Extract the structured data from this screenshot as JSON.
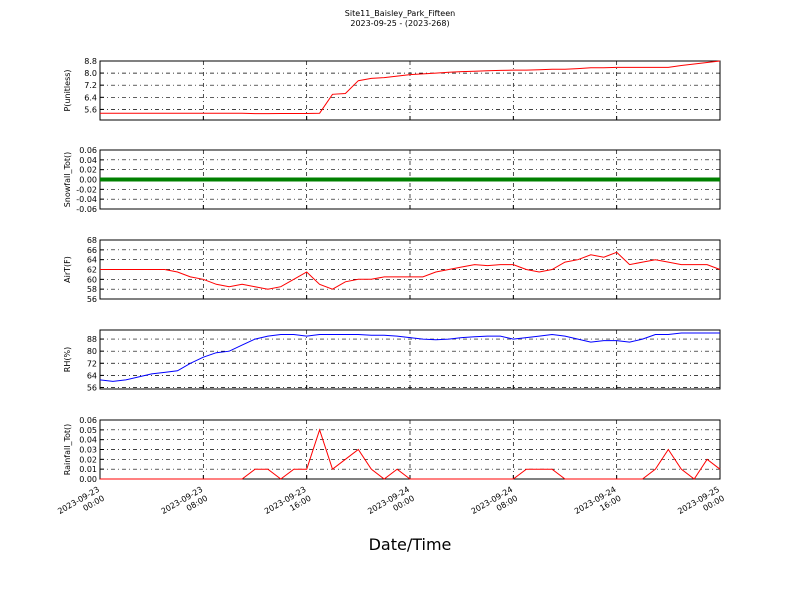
{
  "title": "Site11_Baisley_Park_Fifteen",
  "subtitle": "2023-09-25 - (2023-268)",
  "xlabel": "Date/Time",
  "x": [
    "2023-09-23 00:00",
    "2023-09-23 01:00",
    "2023-09-23 02:00",
    "2023-09-23 03:00",
    "2023-09-23 04:00",
    "2023-09-23 05:00",
    "2023-09-23 06:00",
    "2023-09-23 07:00",
    "2023-09-23 08:00",
    "2023-09-23 09:00",
    "2023-09-23 10:00",
    "2023-09-23 11:00",
    "2023-09-23 12:00",
    "2023-09-23 13:00",
    "2023-09-23 14:00",
    "2023-09-23 15:00",
    "2023-09-23 16:00",
    "2023-09-23 17:00",
    "2023-09-23 18:00",
    "2023-09-23 19:00",
    "2023-09-23 20:00",
    "2023-09-23 21:00",
    "2023-09-23 22:00",
    "2023-09-23 23:00",
    "2023-09-24 00:00",
    "2023-09-24 01:00",
    "2023-09-24 02:00",
    "2023-09-24 03:00",
    "2023-09-24 04:00",
    "2023-09-24 05:00",
    "2023-09-24 06:00",
    "2023-09-24 07:00",
    "2023-09-24 08:00",
    "2023-09-24 09:00",
    "2023-09-24 10:00",
    "2023-09-24 11:00",
    "2023-09-24 12:00",
    "2023-09-24 13:00",
    "2023-09-24 14:00",
    "2023-09-24 15:00",
    "2023-09-24 16:00",
    "2023-09-24 17:00",
    "2023-09-24 18:00",
    "2023-09-24 19:00",
    "2023-09-24 20:00",
    "2023-09-24 21:00",
    "2023-09-24 22:00",
    "2023-09-24 23:00",
    "2023-09-25 00:00"
  ],
  "xlim": [
    "2023-09-23 00:00",
    "2023-09-25 00:00"
  ],
  "xticks": [
    "2023-09-23 00:00",
    "2023-09-23 08:00",
    "2023-09-23 16:00",
    "2023-09-24 00:00",
    "2023-09-24 08:00",
    "2023-09-24 16:00",
    "2023-09-25 00:00"
  ],
  "chart_data": [
    {
      "type": "line",
      "ylabel": "P(unitless)",
      "ylim": [
        4.9,
        8.8
      ],
      "grid": true,
      "yticks": [
        5.6,
        6.4,
        7.2,
        {
          "value": 8,
          "label": "8.0"
        },
        8.8
      ],
      "series": [
        {
          "color": "#ff0000",
          "values": [
            5.35,
            5.35,
            5.35,
            5.35,
            5.35,
            5.35,
            5.35,
            5.35,
            5.34,
            5.34,
            5.34,
            5.34,
            5.32,
            5.32,
            5.33,
            5.33,
            5.33,
            5.35,
            6.6,
            6.65,
            7.5,
            7.65,
            7.7,
            7.8,
            7.9,
            7.95,
            8.0,
            8.05,
            8.1,
            8.12,
            8.15,
            8.18,
            8.2,
            8.2,
            8.22,
            8.25,
            8.25,
            8.3,
            8.35,
            8.35,
            8.38,
            8.38,
            8.38,
            8.38,
            8.38,
            8.5,
            8.6,
            8.7,
            8.8
          ]
        }
      ]
    },
    {
      "type": "line",
      "ylabel": "Snowfall_Tot()",
      "ylim": [
        -0.06,
        0.06
      ],
      "grid": true,
      "yticks": [
        -0.06,
        -0.04,
        -0.02,
        {
          "value": 0,
          "label": "0.00"
        },
        0.02,
        0.04,
        0.06
      ],
      "series": [
        {
          "color": "#008000",
          "values": [
            0,
            0,
            0,
            0,
            0,
            0,
            0,
            0,
            0,
            0,
            0,
            0,
            0,
            0,
            0,
            0,
            0,
            0,
            0,
            0,
            0,
            0,
            0,
            0,
            0,
            0,
            0,
            0,
            0,
            0,
            0,
            0,
            0,
            0,
            0,
            0,
            0,
            0,
            0,
            0,
            0,
            0,
            0,
            0,
            0,
            0,
            0,
            0,
            0
          ]
        }
      ]
    },
    {
      "type": "line",
      "ylabel": "AirT(F)",
      "ylim": [
        56,
        68
      ],
      "grid": true,
      "yticks": [
        56,
        58,
        60,
        62,
        64,
        66,
        68
      ],
      "series": [
        {
          "color": "#ff0000",
          "values": [
            62,
            62,
            62,
            62,
            62,
            62,
            61.5,
            60.5,
            60,
            59,
            58.5,
            59,
            58.5,
            58,
            58.5,
            60,
            61.5,
            59,
            58,
            59.5,
            60,
            60,
            60.5,
            60.5,
            60.5,
            60.5,
            61.5,
            62,
            62.5,
            63,
            62.8,
            63,
            63,
            62,
            61.5,
            62,
            63.5,
            64,
            65,
            64.5,
            65.5,
            63,
            63.5,
            64,
            63.5,
            63,
            63,
            63,
            62
          ]
        }
      ]
    },
    {
      "type": "line",
      "ylabel": "RH(%)",
      "ylim": [
        55,
        94
      ],
      "grid": true,
      "yticks": [
        56,
        64,
        72,
        80,
        88
      ],
      "series": [
        {
          "color": "#0000ff",
          "values": [
            61,
            60,
            61,
            63,
            65,
            66,
            67,
            72,
            76,
            79,
            80,
            84,
            88,
            90,
            91,
            91,
            90,
            91,
            91,
            91,
            91,
            90.5,
            90.5,
            90,
            89,
            88,
            87.5,
            88,
            89,
            89.5,
            90,
            90,
            88,
            89,
            90,
            91,
            90,
            88,
            86,
            87,
            87,
            86,
            88,
            91,
            91,
            92,
            92,
            92,
            92
          ]
        }
      ]
    },
    {
      "type": "line",
      "ylabel": "Rainfall_Tot()",
      "ylim": [
        0,
        0.06
      ],
      "grid": true,
      "yticks": [
        {
          "value": 0,
          "label": "0.00"
        },
        0.01,
        0.02,
        0.03,
        0.04,
        0.05,
        0.06
      ],
      "series": [
        {
          "color": "#ff0000",
          "values": [
            0,
            0,
            0,
            0,
            0,
            0,
            0,
            0,
            0,
            0,
            0,
            0,
            0.01,
            0.01,
            0,
            0.01,
            0.01,
            0.05,
            0.01,
            0.02,
            0.03,
            0.01,
            0,
            0.01,
            0,
            0,
            0,
            0,
            0,
            0,
            0,
            0,
            0,
            0.01,
            0.01,
            0.01,
            0,
            0,
            0,
            0,
            0,
            0,
            0,
            0.01,
            0.03,
            0.01,
            0,
            0.02,
            0.01
          ]
        }
      ]
    }
  ]
}
